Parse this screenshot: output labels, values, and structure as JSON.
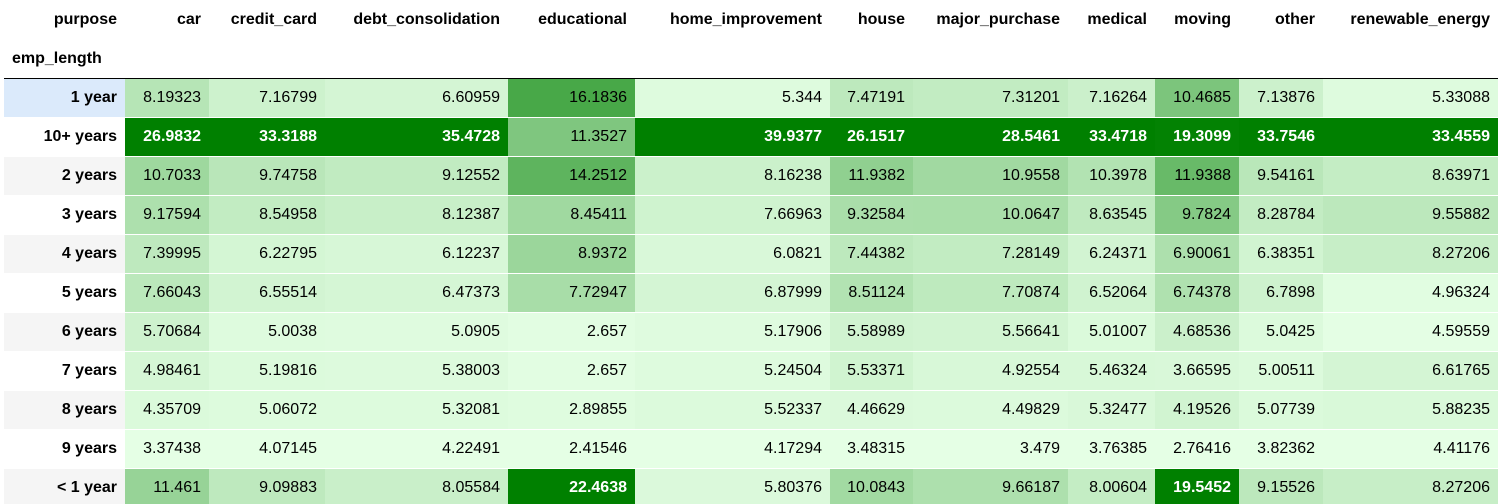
{
  "index_names": {
    "columns": "purpose",
    "rows": "emp_length"
  },
  "colors": {
    "low": "#e5ffe5",
    "high": "#008000",
    "hover_row": "#dbeafb"
  },
  "chart_data": {
    "type": "heatmap",
    "columns": [
      "car",
      "credit_card",
      "debt_consolidation",
      "educational",
      "home_improvement",
      "house",
      "major_purchase",
      "medical",
      "moving",
      "other",
      "renewable_energy"
    ],
    "rows": [
      "1 year",
      "10+ years",
      "2 years",
      "3 years",
      "4 years",
      "5 years",
      "6 years",
      "7 years",
      "8 years",
      "9 years",
      "< 1 year"
    ],
    "cells": [
      [
        "8.19323",
        "7.16799",
        "6.60959",
        "16.1836",
        "5.344",
        "7.47191",
        "7.31201",
        "7.16264",
        "10.4685",
        "7.13876",
        "5.33088"
      ],
      [
        "26.9832",
        "33.3188",
        "35.4728",
        "11.3527",
        "39.9377",
        "26.1517",
        "28.5461",
        "33.4718",
        "19.3099",
        "33.7546",
        "33.4559"
      ],
      [
        "10.7033",
        "9.74758",
        "9.12552",
        "14.2512",
        "8.16238",
        "11.9382",
        "10.9558",
        "10.3978",
        "11.9388",
        "9.54161",
        "8.63971"
      ],
      [
        "9.17594",
        "8.54958",
        "8.12387",
        "8.45411",
        "7.66963",
        "9.32584",
        "10.0647",
        "8.63545",
        "9.7824",
        "8.28784",
        "9.55882"
      ],
      [
        "7.39995",
        "6.22795",
        "6.12237",
        "8.9372",
        "6.0821",
        "7.44382",
        "7.28149",
        "6.24371",
        "6.90061",
        "6.38351",
        "8.27206"
      ],
      [
        "7.66043",
        "6.55514",
        "6.47373",
        "7.72947",
        "6.87999",
        "8.51124",
        "7.70874",
        "6.52064",
        "6.74378",
        "6.7898",
        "4.96324"
      ],
      [
        "5.70684",
        "5.0038",
        "5.0905",
        "2.657",
        "5.17906",
        "5.58989",
        "5.56641",
        "5.01007",
        "4.68536",
        "5.0425",
        "4.59559"
      ],
      [
        "4.98461",
        "5.19816",
        "5.38003",
        "2.657",
        "5.24504",
        "5.53371",
        "4.92554",
        "5.46324",
        "3.66595",
        "5.00511",
        "6.61765"
      ],
      [
        "4.35709",
        "5.06072",
        "5.32081",
        "2.89855",
        "5.52337",
        "4.46629",
        "4.49829",
        "5.32477",
        "4.19526",
        "5.07739",
        "5.88235"
      ],
      [
        "3.37438",
        "4.07145",
        "4.22491",
        "2.41546",
        "4.17294",
        "3.48315",
        "3.479",
        "3.76385",
        "2.76416",
        "3.82362",
        "4.41176"
      ],
      [
        "11.461",
        "9.09883",
        "8.05584",
        "22.4638",
        "5.80376",
        "10.0843",
        "9.66187",
        "8.00604",
        "19.5452",
        "9.15526",
        "8.27206"
      ]
    ]
  }
}
